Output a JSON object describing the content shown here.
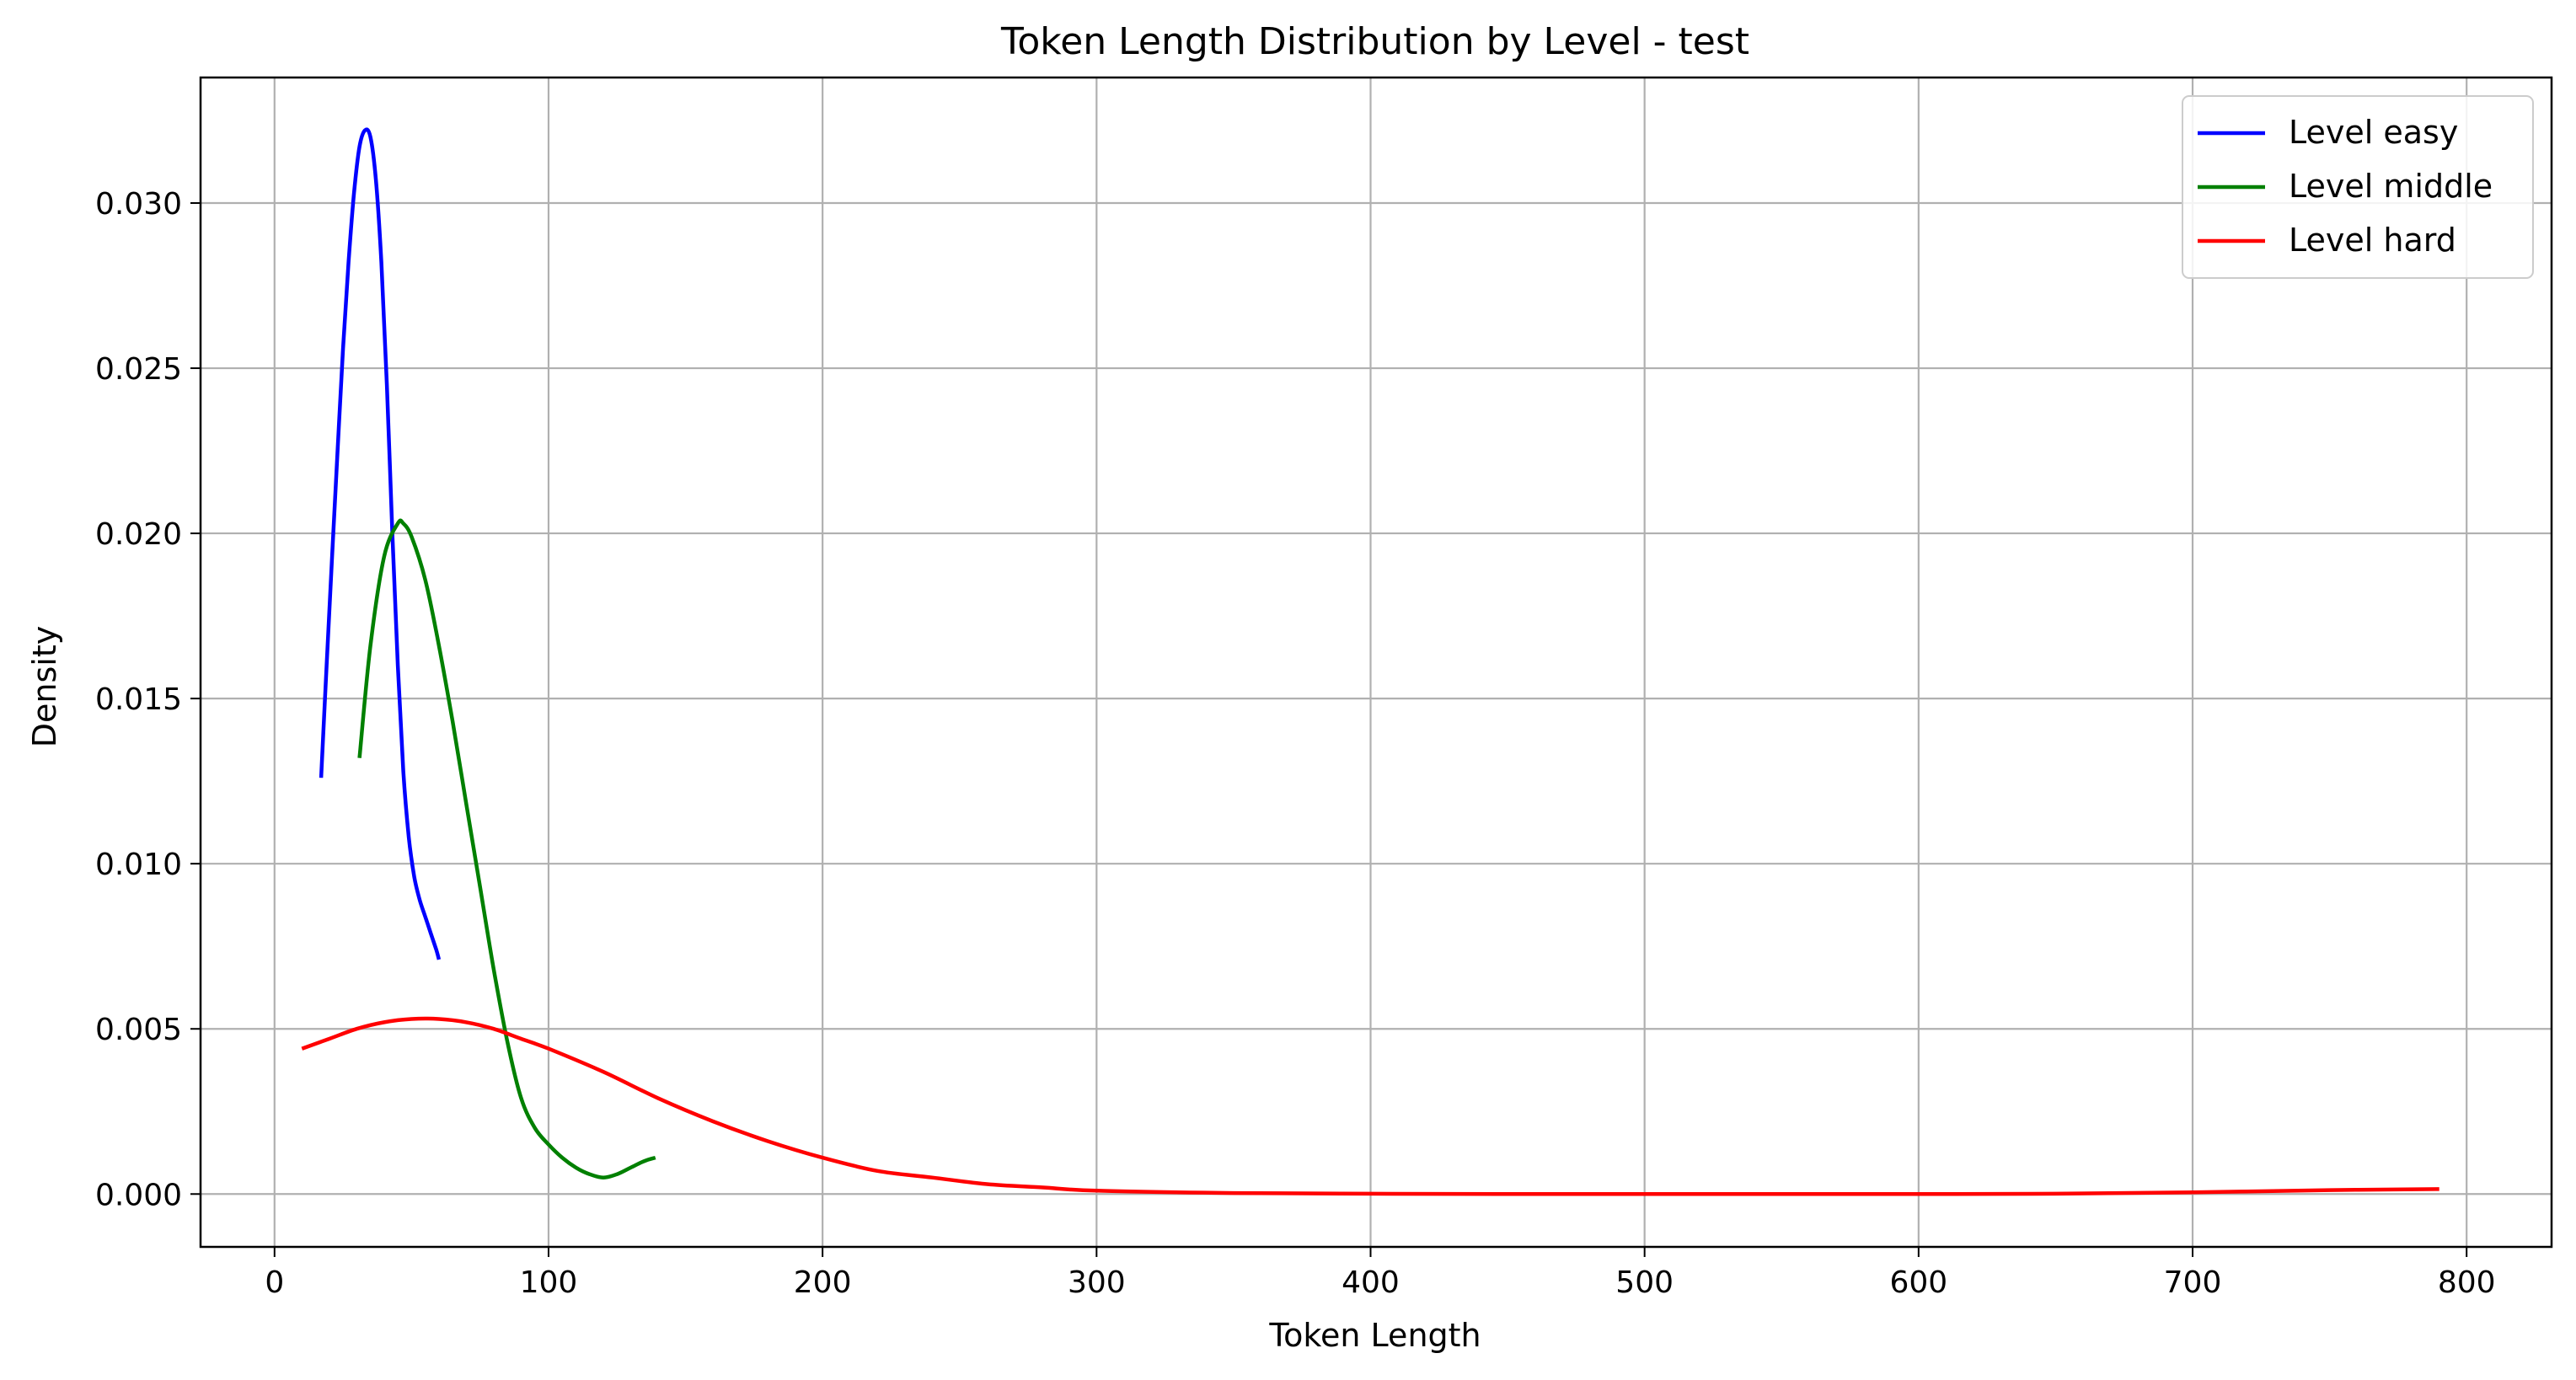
{
  "chart_data": {
    "type": "line",
    "title": "Token Length Distribution by Level - test",
    "xlabel": "Token Length",
    "ylabel": "Density",
    "xlim": [
      -27,
      831
    ],
    "ylim": [
      -0.0016,
      0.0338
    ],
    "xticks": [
      0,
      100,
      200,
      300,
      400,
      500,
      600,
      700,
      800
    ],
    "xtick_labels": [
      "0",
      "100",
      "200",
      "300",
      "400",
      "500",
      "600",
      "700",
      "800"
    ],
    "yticks": [
      0.0,
      0.005,
      0.01,
      0.015,
      0.02,
      0.025,
      0.03
    ],
    "ytick_labels": [
      "0.000",
      "0.005",
      "0.010",
      "0.015",
      "0.020",
      "0.025",
      "0.030"
    ],
    "grid": true,
    "legend_position": "top-right",
    "series": [
      {
        "name": "Level easy",
        "color": "#0000ff",
        "x": [
          17,
          19,
          21,
          23,
          25,
          27,
          29,
          31,
          33,
          35,
          37,
          39,
          41,
          43,
          45,
          47,
          49,
          51,
          53,
          55,
          57,
          59,
          60
        ],
        "y": [
          0.0126,
          0.016,
          0.0193,
          0.0225,
          0.0256,
          0.0282,
          0.0303,
          0.0317,
          0.0322,
          0.032,
          0.0307,
          0.0282,
          0.0245,
          0.02,
          0.016,
          0.0128,
          0.0108,
          0.0096,
          0.0089,
          0.0084,
          0.0079,
          0.0074,
          0.0071
        ]
      },
      {
        "name": "Level middle",
        "color": "#008000",
        "x": [
          31,
          35,
          40,
          45,
          47,
          50,
          55,
          60,
          65,
          70,
          75,
          80,
          85,
          90,
          95,
          100,
          105,
          110,
          115,
          120,
          125,
          130,
          135,
          139
        ],
        "y": [
          0.0132,
          0.0166,
          0.0193,
          0.0203,
          0.0203,
          0.0199,
          0.0186,
          0.0166,
          0.0143,
          0.0118,
          0.0093,
          0.0068,
          0.0046,
          0.0029,
          0.002,
          0.0015,
          0.0011,
          0.0008,
          0.0006,
          0.0005,
          0.0006,
          0.0008,
          0.001,
          0.0011
        ]
      },
      {
        "name": "Level hard",
        "color": "#ff0000",
        "x": [
          10,
          20,
          30,
          40,
          50,
          60,
          70,
          80,
          90,
          100,
          120,
          140,
          160,
          180,
          200,
          220,
          240,
          260,
          280,
          300,
          350,
          400,
          450,
          500,
          550,
          600,
          650,
          700,
          750,
          790
        ],
        "y": [
          0.0044,
          0.0047,
          0.005,
          0.0052,
          0.0053,
          0.0053,
          0.0052,
          0.005,
          0.0047,
          0.0044,
          0.0037,
          0.0029,
          0.0022,
          0.0016,
          0.0011,
          0.0007,
          0.0005,
          0.0003,
          0.0002,
          0.0001,
          3e-05,
          1e-05,
          0.0,
          0.0,
          0.0,
          0.0,
          1e-05,
          5e-05,
          0.00012,
          0.00015
        ]
      }
    ]
  }
}
